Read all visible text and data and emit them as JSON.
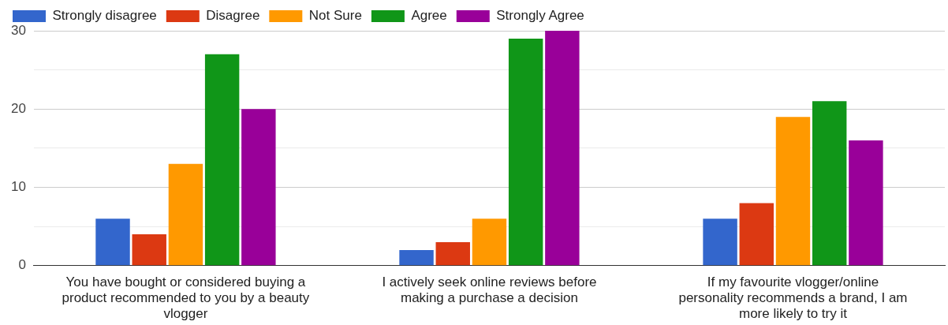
{
  "chart_data": {
    "type": "bar",
    "categories": [
      "You have bought or considered buying a product recommended to you by a beauty vlogger",
      "I actively seek online reviews before making a purchase a decision",
      "If my favourite vlogger/online personality recommends a brand, I am more likely to try it"
    ],
    "series": [
      {
        "name": "Strongly disagree",
        "color": "#3366cc",
        "values": [
          6,
          2,
          6
        ]
      },
      {
        "name": "Disagree",
        "color": "#dc3912",
        "values": [
          4,
          3,
          8
        ]
      },
      {
        "name": "Not Sure",
        "color": "#ff9900",
        "values": [
          13,
          6,
          19
        ]
      },
      {
        "name": "Agree",
        "color": "#109618",
        "values": [
          27,
          29,
          21
        ]
      },
      {
        "name": "Strongly Agree",
        "color": "#990099",
        "values": [
          20,
          30,
          16
        ]
      }
    ],
    "ylim": [
      0,
      30
    ],
    "yticks": [
      0,
      {
        "value": 5,
        "label": null
      },
      10,
      {
        "value": 15,
        "label": null
      },
      20,
      {
        "value": 25,
        "label": null
      },
      30
    ],
    "grid": "y",
    "legend": "top left"
  }
}
